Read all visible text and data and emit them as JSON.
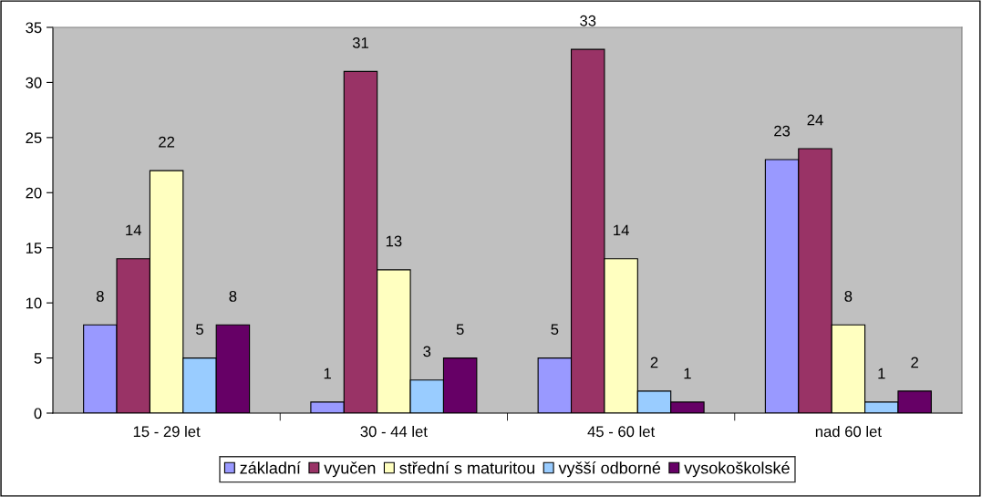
{
  "chart_data": {
    "type": "bar",
    "categories": [
      "15 - 29 let",
      "30 - 44 let",
      "45 - 60 let",
      "nad 60 let"
    ],
    "series": [
      {
        "name": "základní",
        "color": "#9999ff",
        "values": [
          8,
          1,
          5,
          23
        ]
      },
      {
        "name": "vyučen",
        "color": "#993366",
        "values": [
          14,
          31,
          33,
          24
        ]
      },
      {
        "name": "střední s maturitou",
        "color": "#ffffc0",
        "values": [
          22,
          13,
          14,
          8
        ]
      },
      {
        "name": "vyšší odborné",
        "color": "#99ccff",
        "values": [
          5,
          3,
          2,
          1
        ]
      },
      {
        "name": "vysokoškolské",
        "color": "#660066",
        "values": [
          8,
          5,
          1,
          2
        ]
      }
    ],
    "ylim": [
      0,
      35
    ],
    "yticks": [
      0,
      5,
      10,
      15,
      20,
      25,
      30,
      35
    ],
    "grid": false,
    "legend": "bottom",
    "data_labels": true
  }
}
